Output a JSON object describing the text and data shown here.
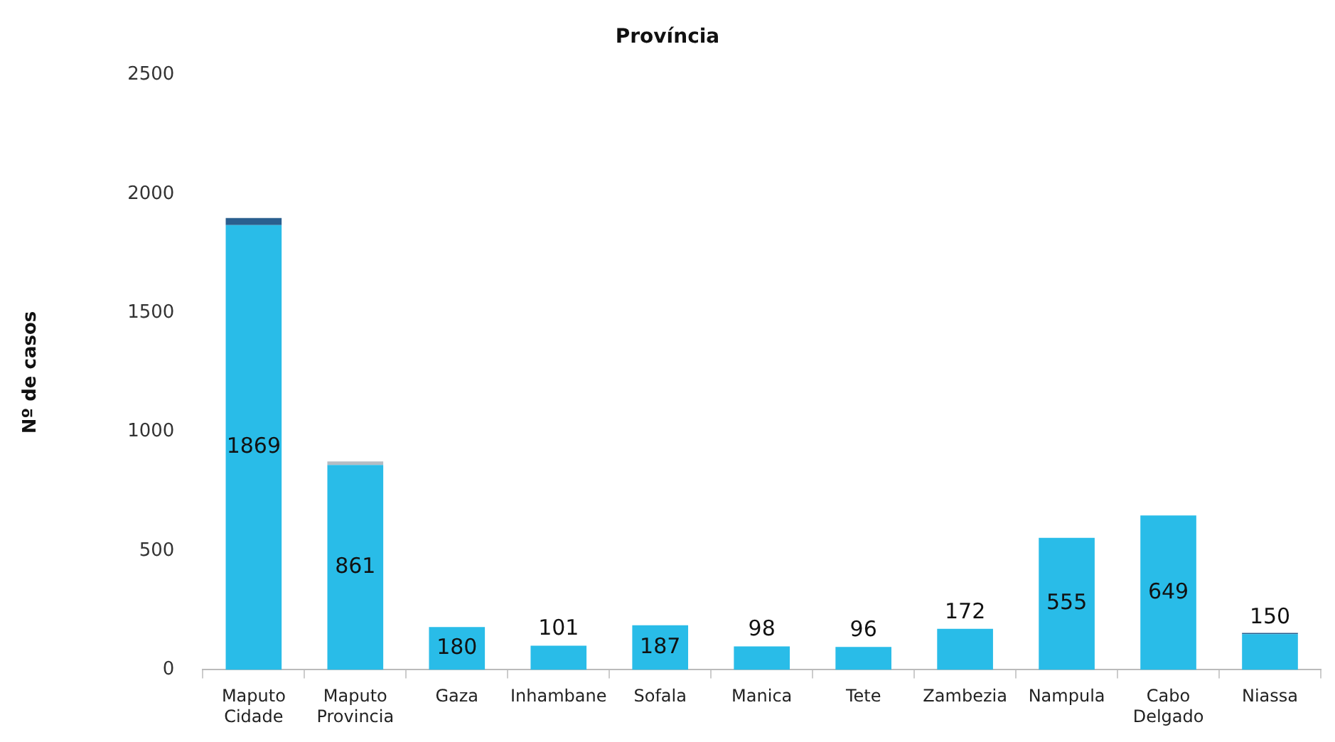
{
  "chart_data": {
    "type": "bar",
    "title": "Província",
    "ylabel": "Nº de casos",
    "categories": [
      "Maputo Cidade",
      "Maputo Provincia",
      "Gaza",
      "Inhambane",
      "Sofala",
      "Manica",
      "Tete",
      "Zambezia",
      "Nampula",
      "Cabo Delgado",
      "Niassa"
    ],
    "stacked": true,
    "series": [
      {
        "color": "#29bce8",
        "values": [
          1869,
          861,
          180,
          101,
          187,
          98,
          96,
          172,
          555,
          649,
          150
        ],
        "value_labels": [
          "1869",
          "861",
          "180",
          "101",
          "187",
          "98",
          "96",
          "172",
          "555",
          "649",
          "150"
        ]
      },
      {
        "color": "#2a5f8f",
        "values": [
          30,
          null,
          null,
          null,
          null,
          null,
          null,
          null,
          null,
          null,
          5
        ]
      },
      {
        "color": "#b4bcc4",
        "values": [
          null,
          15,
          null,
          null,
          null,
          null,
          null,
          null,
          null,
          null,
          null
        ]
      }
    ],
    "ylim": [
      0,
      2500
    ],
    "yticks": [
      0,
      500,
      1000,
      1500,
      2000,
      2500
    ],
    "grid": false,
    "legend": false
  }
}
